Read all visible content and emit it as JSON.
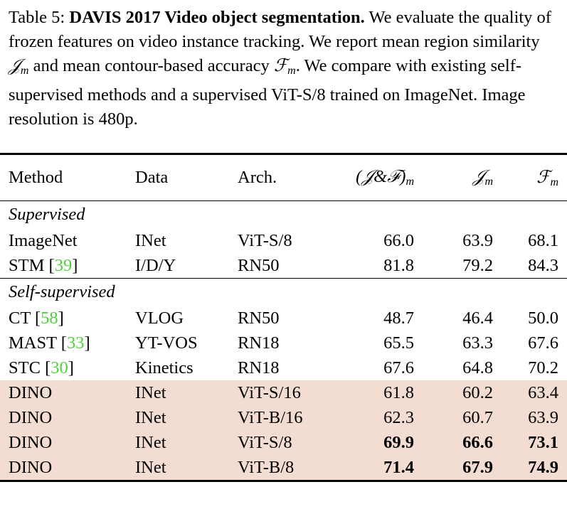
{
  "caption": {
    "label": "Table 5:",
    "title": "DAVIS 2017 Video object segmentation.",
    "text_a": "We evaluate the quality of frozen features on video instance tracking. We report mean region similarity",
    "text_b": "and mean contour-based accuracy",
    "text_c": "We compare with existing self-supervised methods and a supervised ViT-S/8 trained on ImageNet. Image resolution is 480p.",
    "sym_j": "𝒥",
    "sym_f": "ℱ",
    "sub_m": "m"
  },
  "table": {
    "headers": {
      "method": "Method",
      "data": "Data",
      "arch": "Arch.",
      "jf": "(𝒥&ℱ)",
      "j": "𝒥",
      "f": "ℱ",
      "sub": "m"
    },
    "groups": {
      "supervised": "Supervised",
      "self_supervised": "Self-supervised"
    },
    "supervised_rows": [
      {
        "method": "ImageNet",
        "ref": "",
        "data": "INet",
        "arch": "ViT-S/8",
        "jf": "66.0",
        "j": "63.9",
        "f": "68.1"
      },
      {
        "method": "STM",
        "ref": "39",
        "data": "I/D/Y",
        "arch": "RN50",
        "jf": "81.8",
        "j": "79.2",
        "f": "84.3"
      }
    ],
    "self_rows": [
      {
        "method": "CT",
        "ref": "58",
        "data": "VLOG",
        "arch": "RN50",
        "jf": "48.7",
        "j": "46.4",
        "f": "50.0"
      },
      {
        "method": "MAST",
        "ref": "33",
        "data": "YT-VOS",
        "arch": "RN18",
        "jf": "65.5",
        "j": "63.3",
        "f": "67.6"
      },
      {
        "method": "STC",
        "ref": "30",
        "data": "Kinetics",
        "arch": "RN18",
        "jf": "67.6",
        "j": "64.8",
        "f": "70.2"
      }
    ],
    "dino_rows": [
      {
        "method": "DINO",
        "data": "INet",
        "arch": "ViT-S/16",
        "jf": "61.8",
        "j": "60.2",
        "f": "63.4",
        "bold": false
      },
      {
        "method": "DINO",
        "data": "INet",
        "arch": "ViT-B/16",
        "jf": "62.3",
        "j": "60.7",
        "f": "63.9",
        "bold": false
      },
      {
        "method": "DINO",
        "data": "INet",
        "arch": "ViT-S/8",
        "jf": "69.9",
        "j": "66.6",
        "f": "73.1",
        "bold": true
      },
      {
        "method": "DINO",
        "data": "INet",
        "arch": "ViT-B/8",
        "jf": "71.4",
        "j": "67.9",
        "f": "74.9",
        "bold": true
      }
    ],
    "highlight_color": "#f3ddd2",
    "ref_color": "#4fd13a"
  }
}
